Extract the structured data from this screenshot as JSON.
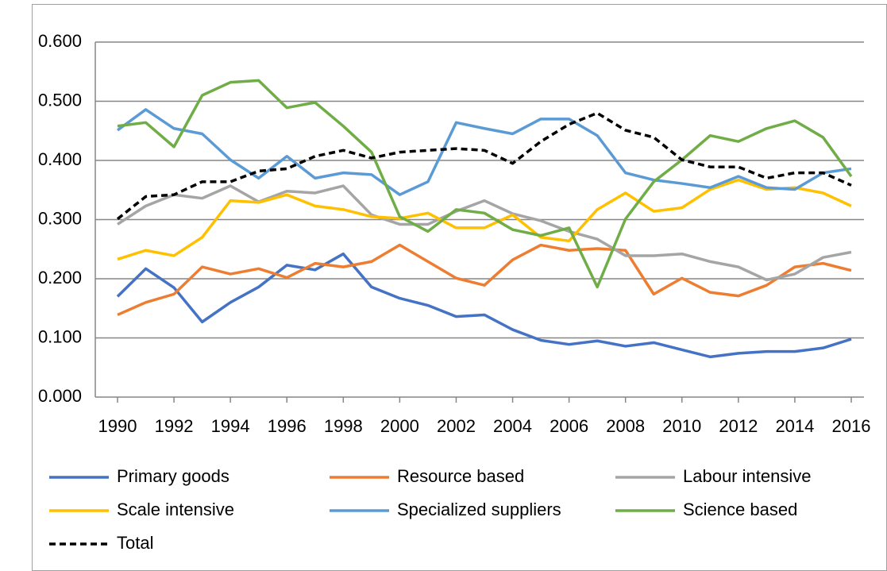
{
  "chart_data": {
    "type": "line",
    "x": [
      1990,
      1991,
      1992,
      1993,
      1994,
      1995,
      1996,
      1997,
      1998,
      1999,
      2000,
      2001,
      2002,
      2003,
      2004,
      2005,
      2006,
      2007,
      2008,
      2009,
      2010,
      2011,
      2012,
      2013,
      2014,
      2015,
      2016
    ],
    "xlim": [
      1990,
      2016
    ],
    "xticks": [
      1990,
      1992,
      1994,
      1996,
      1998,
      2000,
      2002,
      2004,
      2006,
      2008,
      2010,
      2012,
      2014,
      2016
    ],
    "ylim": [
      0,
      0.6
    ],
    "yticks": [
      {
        "value": 0,
        "label": "0.000"
      },
      {
        "value": 0.1,
        "label": "0.100"
      },
      {
        "value": 0.2,
        "label": "0.200"
      },
      {
        "value": 0.3,
        "label": "0.300"
      },
      {
        "value": 0.4,
        "label": "0.400"
      },
      {
        "value": 0.5,
        "label": "0.500"
      },
      {
        "value": 0.6,
        "label": "0.600"
      }
    ],
    "grid": true,
    "legend": "bottom",
    "series": [
      {
        "name": "Primary goods",
        "color": "#4472c4",
        "values": [
          0.17,
          0.217,
          0.185,
          0.127,
          0.16,
          0.186,
          0.223,
          0.215,
          0.242,
          0.186,
          0.167,
          0.155,
          0.136,
          0.139,
          0.114,
          0.096,
          0.089,
          0.095,
          0.086,
          0.092,
          0.08,
          0.068,
          0.074,
          0.077,
          0.077,
          0.083,
          0.098
        ]
      },
      {
        "name": "Resource based",
        "color": "#ed7d31",
        "values": [
          0.139,
          0.16,
          0.174,
          0.22,
          0.208,
          0.217,
          0.202,
          0.226,
          0.22,
          0.229,
          0.257,
          0.229,
          0.201,
          0.189,
          0.232,
          0.257,
          0.248,
          0.251,
          0.248,
          0.174,
          0.201,
          0.177,
          0.171,
          0.189,
          0.22,
          0.226,
          0.214
        ]
      },
      {
        "name": "Labour intensive",
        "color": "#a5a5a5",
        "values": [
          0.292,
          0.323,
          0.342,
          0.336,
          0.357,
          0.33,
          0.348,
          0.345,
          0.357,
          0.308,
          0.292,
          0.292,
          0.314,
          0.332,
          0.31,
          0.298,
          0.28,
          0.267,
          0.239,
          0.239,
          0.242,
          0.229,
          0.22,
          0.198,
          0.208,
          0.236,
          0.245
        ]
      },
      {
        "name": "Scale intensive",
        "color": "#ffc000",
        "values": [
          0.233,
          0.248,
          0.239,
          0.27,
          0.332,
          0.329,
          0.342,
          0.323,
          0.317,
          0.305,
          0.302,
          0.311,
          0.286,
          0.286,
          0.308,
          0.27,
          0.264,
          0.317,
          0.345,
          0.314,
          0.32,
          0.351,
          0.367,
          0.351,
          0.354,
          0.345,
          0.323
        ]
      },
      {
        "name": "Specialized suppliers",
        "color": "#5b9bd5",
        "values": [
          0.451,
          0.486,
          0.454,
          0.445,
          0.401,
          0.37,
          0.407,
          0.37,
          0.379,
          0.376,
          0.342,
          0.364,
          0.464,
          0.454,
          0.445,
          0.47,
          0.47,
          0.442,
          0.379,
          0.367,
          0.361,
          0.354,
          0.373,
          0.354,
          0.351,
          0.379,
          0.386
        ]
      },
      {
        "name": "Science based",
        "color": "#70ad47",
        "values": [
          0.458,
          0.464,
          0.423,
          0.51,
          0.532,
          0.535,
          0.489,
          0.498,
          0.458,
          0.414,
          0.305,
          0.28,
          0.317,
          0.311,
          0.283,
          0.273,
          0.286,
          0.186,
          0.301,
          0.364,
          0.401,
          0.442,
          0.432,
          0.454,
          0.467,
          0.439,
          0.373
        ]
      },
      {
        "name": "Total",
        "color": "#000000",
        "dashed": true,
        "values": [
          0.301,
          0.339,
          0.342,
          0.364,
          0.364,
          0.382,
          0.386,
          0.407,
          0.417,
          0.404,
          0.414,
          0.417,
          0.42,
          0.417,
          0.395,
          0.432,
          0.461,
          0.48,
          0.451,
          0.439,
          0.401,
          0.389,
          0.389,
          0.37,
          0.379,
          0.379,
          0.358
        ]
      }
    ]
  }
}
